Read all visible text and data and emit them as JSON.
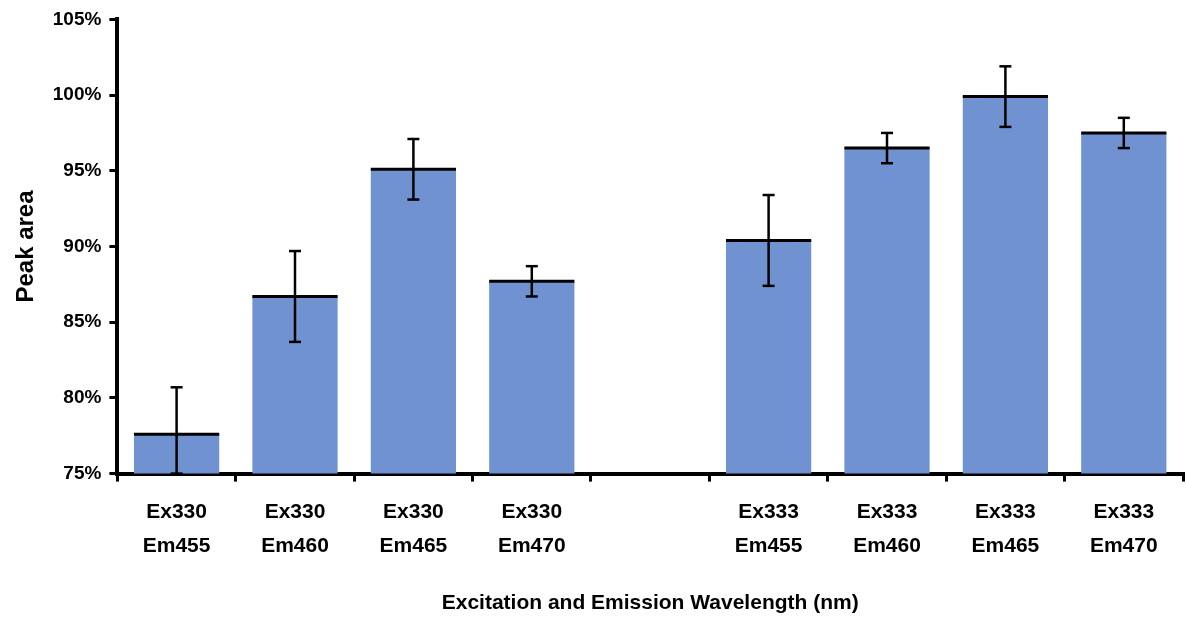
{
  "chart_data": {
    "type": "bar",
    "xlabel": "Excitation and Emission Wavelength (nm)",
    "ylabel": "Peak area",
    "categories": [
      "Ex330 Em455",
      "Ex330 Em460",
      "Ex330 Em465",
      "Ex330 Em470",
      null,
      "Ex333 Em455",
      "Ex333 Em460",
      "Ex333 Em465",
      "Ex333 Em470"
    ],
    "values": [
      77.6,
      86.7,
      95.1,
      87.7,
      null,
      90.4,
      96.5,
      99.9,
      97.5
    ],
    "errors": [
      [
        75,
        80.7
      ],
      3,
      2,
      1,
      null,
      3,
      1,
      2,
      1
    ],
    "color": "#7092d0",
    "ylim": [
      75,
      105
    ],
    "yticks": [
      {
        "value": 75,
        "label": "75%"
      },
      {
        "value": 80,
        "label": "80%"
      },
      {
        "value": 85,
        "label": "85%"
      },
      {
        "value": 90,
        "label": "90%"
      },
      {
        "value": 95,
        "label": "95%"
      },
      {
        "value": 100,
        "label": "100%"
      },
      {
        "value": 105,
        "label": "105%"
      }
    ],
    "grid": false,
    "legend": false
  }
}
